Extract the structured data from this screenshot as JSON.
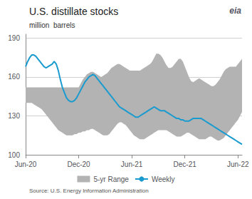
{
  "chart_data": {
    "type": "line",
    "title": "U.S. distillate stocks",
    "subtitle": "million  barrels",
    "source": "Source: U.S. Energy Information Administration",
    "annotations": [
      "eia"
    ],
    "background_color": "#ffffff",
    "categories": [
      "Jun-20",
      null,
      null,
      null,
      null,
      null,
      null,
      null,
      null,
      null,
      null,
      null,
      null,
      null,
      null,
      null,
      null,
      null,
      null,
      null,
      null,
      null,
      null,
      null,
      null,
      null,
      "Dec-20",
      null,
      null,
      null,
      null,
      null,
      null,
      null,
      null,
      null,
      null,
      null,
      null,
      null,
      null,
      null,
      null,
      null,
      null,
      null,
      null,
      null,
      null,
      null,
      null,
      null,
      "Jun-21",
      null,
      null,
      null,
      null,
      null,
      null,
      null,
      null,
      null,
      null,
      null,
      null,
      null,
      null,
      null,
      null,
      null,
      null,
      null,
      null,
      null,
      null,
      null,
      null,
      null,
      "Dec-21",
      null,
      null,
      null,
      null,
      null,
      null,
      null,
      null,
      null,
      null,
      null,
      null,
      null,
      null,
      null,
      null,
      null,
      null,
      null,
      null,
      null,
      null,
      null,
      null,
      null,
      "Jun-22",
      null,
      null
    ],
    "ylim": [
      100,
      193
    ],
    "yticks": [
      100,
      130,
      160,
      190
    ],
    "grid": true,
    "legend": "bottom",
    "series": [
      {
        "name": "5-yr Range",
        "type": "range",
        "color": "#b3b3b3",
        "low": [
          140,
          140,
          140,
          140,
          139,
          138,
          137,
          136,
          135,
          133,
          131,
          129,
          127,
          125,
          123,
          121,
          119,
          118,
          117,
          116,
          115,
          115,
          115,
          115,
          116,
          116,
          117,
          117,
          118,
          118,
          119,
          119,
          120,
          120,
          119,
          118,
          117,
          116,
          115,
          115,
          115,
          116,
          118,
          120,
          122,
          124,
          125,
          125,
          124,
          123,
          121,
          119,
          117,
          115,
          114,
          113,
          112,
          112,
          112,
          113,
          114,
          115,
          116,
          117,
          118,
          119,
          119,
          119,
          119,
          119,
          118,
          117,
          116,
          115,
          114,
          114,
          114,
          115,
          116,
          117,
          117,
          116,
          115,
          114,
          113,
          112,
          112,
          112,
          112,
          113,
          114,
          114,
          113,
          112,
          111,
          111,
          112,
          113,
          115,
          117,
          119,
          121,
          123,
          125,
          127,
          130,
          133
        ],
        "high": [
          152,
          152,
          152,
          152,
          152,
          152,
          152,
          152,
          152,
          152,
          152,
          152,
          152,
          152,
          152,
          152,
          152,
          152,
          152,
          152,
          152,
          152,
          152,
          152,
          152,
          152,
          152,
          155,
          158,
          160,
          162,
          163,
          164,
          164,
          163,
          162,
          161,
          160,
          161,
          162,
          163,
          165,
          167,
          168,
          169,
          170,
          170,
          169,
          168,
          167,
          166,
          165,
          165,
          165,
          165,
          165,
          165,
          166,
          167,
          168,
          169,
          170,
          172,
          175,
          178,
          178,
          177,
          175,
          172,
          169,
          167,
          167,
          168,
          170,
          172,
          174,
          174,
          172,
          168,
          164,
          160,
          157,
          156,
          157,
          158,
          159,
          158,
          157,
          156,
          155,
          154,
          153,
          153,
          154,
          156,
          158,
          161,
          164,
          166,
          167,
          168,
          168,
          168,
          168,
          170,
          172,
          174
        ]
      },
      {
        "name": "Weekly",
        "type": "line",
        "color": "#1a9bcf",
        "values": [
          168,
          172,
          175,
          177,
          177,
          176,
          174,
          172,
          170,
          168,
          167,
          168,
          169,
          170,
          172,
          170,
          165,
          158,
          152,
          148,
          144,
          142,
          141,
          141,
          142,
          144,
          147,
          150,
          153,
          156,
          158,
          160,
          161,
          162,
          161,
          159,
          157,
          155,
          153,
          151,
          149,
          147,
          145,
          143,
          141,
          139,
          137,
          136,
          135,
          134,
          133,
          132,
          131,
          130,
          129,
          129,
          130,
          131,
          132,
          133,
          134,
          135,
          136,
          137,
          136,
          135,
          134,
          134,
          134,
          133,
          132,
          131,
          130,
          129,
          128,
          128,
          127,
          127,
          126,
          126,
          126,
          127,
          128,
          128,
          128,
          128,
          128,
          127,
          126,
          125,
          124,
          123,
          122,
          121,
          120,
          119,
          118,
          117,
          116,
          115,
          114,
          113,
          112,
          111,
          110,
          109,
          108
        ]
      }
    ]
  }
}
